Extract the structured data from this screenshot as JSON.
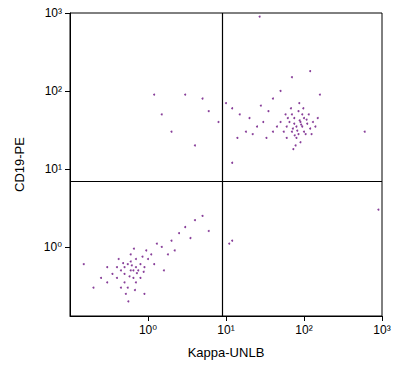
{
  "chart_data": {
    "type": "scatter",
    "x_label": "Kappa-UNLB",
    "y_label": "CD19-PE",
    "log": true,
    "grid": false,
    "color": "#7b2a8e",
    "marker": "dot",
    "xlim": [
      0.1,
      1000
    ],
    "ylim": [
      0.13,
      1000
    ],
    "xticks": [
      {
        "value": 1,
        "label": "10⁰"
      },
      {
        "value": 10,
        "label": "10¹"
      },
      {
        "value": 100,
        "label": "10²"
      },
      {
        "value": 1000,
        "label": "10³"
      }
    ],
    "yticks": [
      {
        "value": 1,
        "label": "10⁰"
      },
      {
        "value": 10,
        "label": "10¹"
      },
      {
        "value": 100,
        "label": "10²"
      },
      {
        "value": 1000,
        "label": "10³"
      }
    ],
    "quadrant_gates": {
      "x": 9,
      "y": 7
    },
    "points": [
      [
        0.6,
        0.5
      ],
      [
        0.5,
        0.45
      ],
      [
        0.7,
        0.55
      ],
      [
        0.55,
        0.6
      ],
      [
        0.65,
        0.4
      ],
      [
        0.45,
        0.5
      ],
      [
        0.75,
        0.5
      ],
      [
        0.6,
        0.65
      ],
      [
        0.5,
        0.35
      ],
      [
        0.8,
        0.6
      ],
      [
        0.4,
        0.4
      ],
      [
        0.7,
        0.7
      ],
      [
        0.55,
        0.3
      ],
      [
        0.9,
        0.55
      ],
      [
        0.35,
        0.45
      ],
      [
        0.6,
        0.8
      ],
      [
        0.85,
        0.75
      ],
      [
        0.5,
        0.55
      ],
      [
        0.65,
        0.5
      ],
      [
        0.45,
        0.3
      ],
      [
        0.7,
        0.35
      ],
      [
        0.3,
        0.35
      ],
      [
        1.0,
        0.7
      ],
      [
        0.58,
        0.42
      ],
      [
        0.62,
        0.58
      ],
      [
        0.48,
        0.62
      ],
      [
        0.72,
        0.46
      ],
      [
        0.52,
        0.25
      ],
      [
        0.68,
        0.28
      ],
      [
        0.4,
        0.55
      ],
      [
        1.1,
        0.8
      ],
      [
        0.95,
        0.9
      ],
      [
        0.8,
        0.4
      ],
      [
        0.42,
        0.7
      ],
      [
        0.56,
        0.2
      ],
      [
        0.3,
        0.55
      ],
      [
        0.25,
        0.4
      ],
      [
        1.2,
        0.6
      ],
      [
        0.66,
        0.95
      ],
      [
        0.88,
        0.48
      ],
      [
        1.5,
        1.0
      ],
      [
        2,
        1.2
      ],
      [
        2.5,
        1.5
      ],
      [
        3,
        1.8
      ],
      [
        1.8,
        0.8
      ],
      [
        4,
        2.2
      ],
      [
        5,
        2.5
      ],
      [
        1.3,
        1.1
      ],
      [
        2.2,
        0.9
      ],
      [
        3.5,
        1.3
      ],
      [
        6,
        1.6
      ],
      [
        0.2,
        0.3
      ],
      [
        0.15,
        0.6
      ],
      [
        1.6,
        0.5
      ],
      [
        0.9,
        0.25
      ],
      [
        12,
        1.2
      ],
      [
        11,
        1.1
      ],
      [
        900,
        3
      ],
      [
        80,
        35
      ],
      [
        70,
        30
      ],
      [
        90,
        40
      ],
      [
        75,
        45
      ],
      [
        100,
        30
      ],
      [
        60,
        35
      ],
      [
        85,
        28
      ],
      [
        95,
        50
      ],
      [
        65,
        40
      ],
      [
        110,
        38
      ],
      [
        80,
        25
      ],
      [
        70,
        50
      ],
      [
        120,
        33
      ],
      [
        55,
        30
      ],
      [
        90,
        22
      ],
      [
        75,
        38
      ],
      [
        100,
        45
      ],
      [
        85,
        55
      ],
      [
        130,
        40
      ],
      [
        60,
        25
      ],
      [
        50,
        40
      ],
      [
        105,
        28
      ],
      [
        95,
        35
      ],
      [
        72,
        33
      ],
      [
        88,
        42
      ],
      [
        78,
        20
      ],
      [
        115,
        50
      ],
      [
        68,
        60
      ],
      [
        140,
        35
      ],
      [
        45,
        35
      ],
      [
        82,
        31
      ],
      [
        92,
        37
      ],
      [
        62,
        45
      ],
      [
        98,
        60
      ],
      [
        125,
        28
      ],
      [
        58,
        50
      ],
      [
        76,
        27
      ],
      [
        108,
        43
      ],
      [
        150,
        45
      ],
      [
        40,
        30
      ],
      [
        87,
        70
      ],
      [
        73,
        18
      ],
      [
        30,
        40
      ],
      [
        20,
        45
      ],
      [
        15,
        50
      ],
      [
        25,
        35
      ],
      [
        35,
        55
      ],
      [
        12,
        60
      ],
      [
        10,
        70
      ],
      [
        8,
        40
      ],
      [
        5,
        80
      ],
      [
        3,
        90
      ],
      [
        2,
        30
      ],
      [
        18,
        30
      ],
      [
        28,
        65
      ],
      [
        40,
        80
      ],
      [
        50,
        100
      ],
      [
        70,
        150
      ],
      [
        120,
        180
      ],
      [
        160,
        90
      ],
      [
        6,
        55
      ],
      [
        22,
        28
      ],
      [
        14,
        25
      ],
      [
        33,
        25
      ],
      [
        12,
        12
      ],
      [
        1.5,
        50
      ],
      [
        1.2,
        90
      ],
      [
        4,
        20
      ],
      [
        600,
        30
      ],
      [
        27,
        900
      ]
    ]
  }
}
